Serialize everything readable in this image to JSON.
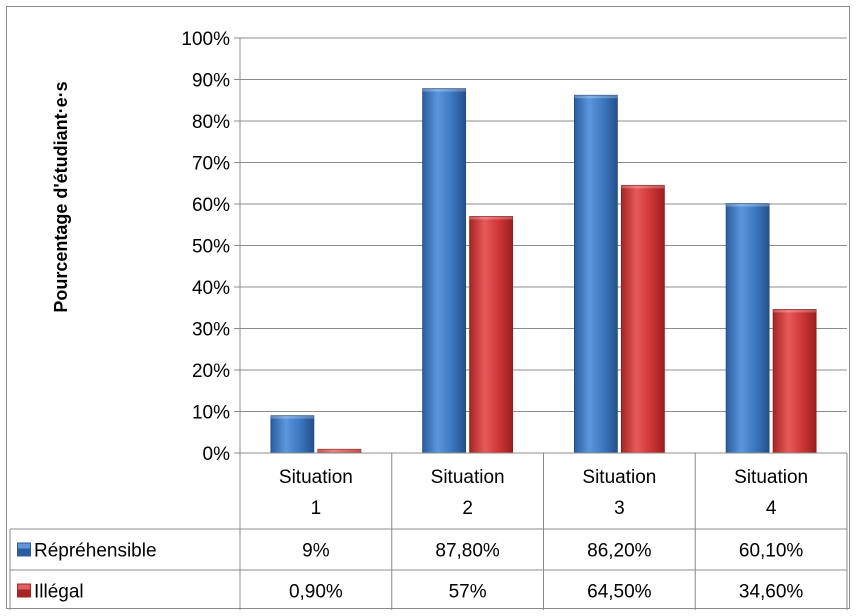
{
  "chart_data": {
    "type": "bar",
    "title": "",
    "xlabel": "",
    "ylabel": "Pourcentage d'étudiant·e·s",
    "ylim": [
      0,
      100
    ],
    "yticks": [
      "0%",
      "10%",
      "20%",
      "30%",
      "40%",
      "50%",
      "60%",
      "70%",
      "80%",
      "90%",
      "100%"
    ],
    "categories": [
      {
        "line1": "Situation",
        "line2": "1"
      },
      {
        "line1": "Situation",
        "line2": "2"
      },
      {
        "line1": "Situation",
        "line2": "3"
      },
      {
        "line1": "Situation",
        "line2": "4"
      }
    ],
    "series": [
      {
        "name": "Répréhensible",
        "color": "#3d7cc9",
        "values": [
          9,
          87.8,
          86.2,
          60.1
        ],
        "labels": [
          "9%",
          "87,80%",
          "86,20%",
          "60,10%"
        ]
      },
      {
        "name": "Illégal",
        "color": "#d23c3c",
        "values": [
          0.9,
          57,
          64.5,
          34.6
        ],
        "labels": [
          "0,90%",
          "57%",
          "64,50%",
          "34,60%"
        ]
      }
    ],
    "grid": true,
    "legend": "data-table"
  }
}
